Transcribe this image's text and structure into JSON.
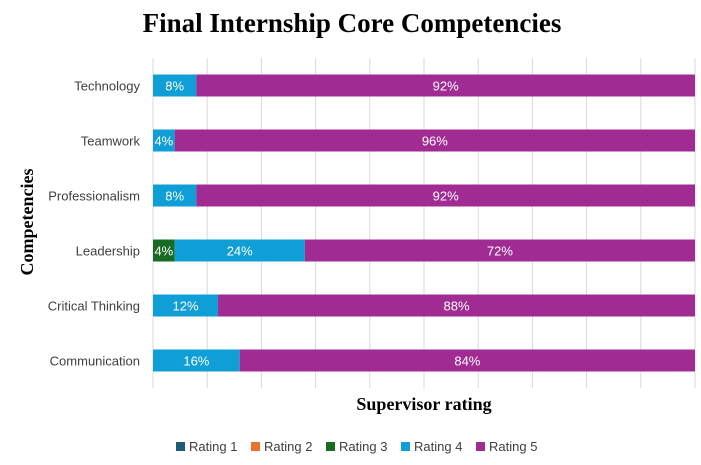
{
  "chart_data": {
    "type": "bar",
    "orientation": "horizontal",
    "stacked": "percent",
    "title": "Final Internship Core Competencies",
    "xlabel": "Supervisor rating",
    "ylabel": "Competencies",
    "xlim": [
      0,
      100
    ],
    "grid": true,
    "legend_position": "bottom",
    "categories": [
      "Technology",
      "Teamwork",
      "Professionalism",
      "Leadership",
      "Critical Thinking",
      "Communication"
    ],
    "series": [
      {
        "name": "Rating 1",
        "color": "#1f5c7a",
        "values": [
          0,
          0,
          0,
          0,
          0,
          0
        ],
        "labels": [
          "",
          "",
          "",
          "",
          "",
          ""
        ]
      },
      {
        "name": "Rating 2",
        "color": "#e97132",
        "values": [
          0,
          0,
          0,
          0,
          0,
          0
        ],
        "labels": [
          "",
          "",
          "",
          "",
          "",
          ""
        ]
      },
      {
        "name": "Rating 3",
        "color": "#196b24",
        "values": [
          0,
          0,
          0,
          4,
          0,
          0
        ],
        "labels": [
          "",
          "",
          "",
          "4%",
          "",
          ""
        ]
      },
      {
        "name": "Rating 4",
        "color": "#0f9ed5",
        "values": [
          8,
          4,
          8,
          24,
          12,
          16
        ],
        "labels": [
          "8%",
          "4%",
          "8%",
          "24%",
          "12%",
          "16%"
        ]
      },
      {
        "name": "Rating 5",
        "color": "#a02b93",
        "values": [
          92,
          96,
          92,
          72,
          88,
          84
        ],
        "labels": [
          "92%",
          "96%",
          "92%",
          "72%",
          "88%",
          "84%"
        ]
      }
    ]
  }
}
